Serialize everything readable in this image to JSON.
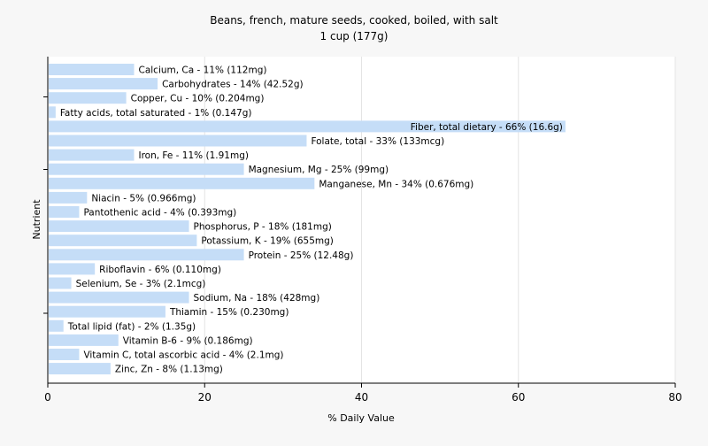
{
  "chart_data": {
    "type": "bar",
    "orientation": "horizontal",
    "title": "Beans, french, mature seeds, cooked, boiled, with salt",
    "subtitle": "1 cup (177g)",
    "xlabel": "% Daily Value",
    "ylabel": "Nutrient",
    "xlim": [
      0,
      80
    ],
    "xticks": [
      0,
      20,
      40,
      60,
      80
    ],
    "grid": true,
    "bar_color": "#c5ddf7",
    "categories": [
      "Calcium, Ca - 11% (112mg)",
      "Carbohydrates - 14% (42.52g)",
      "Copper, Cu - 10% (0.204mg)",
      "Fatty acids, total saturated - 1% (0.147g)",
      "Fiber, total dietary - 66% (16.6g)",
      "Folate, total - 33% (133mcg)",
      "Iron, Fe - 11% (1.91mg)",
      "Magnesium, Mg - 25% (99mg)",
      "Manganese, Mn - 34% (0.676mg)",
      "Niacin - 5% (0.966mg)",
      "Pantothenic acid - 4% (0.393mg)",
      "Phosphorus, P - 18% (181mg)",
      "Potassium, K - 19% (655mg)",
      "Protein - 25% (12.48g)",
      "Riboflavin - 6% (0.110mg)",
      "Selenium, Se - 3% (2.1mcg)",
      "Sodium, Na - 18% (428mg)",
      "Thiamin - 15% (0.230mg)",
      "Total lipid (fat) - 2% (1.35g)",
      "Vitamin B-6 - 9% (0.186mg)",
      "Vitamin C, total ascorbic acid - 4% (2.1mg)",
      "Zinc, Zn - 8% (1.13mg)"
    ],
    "values": [
      11,
      14,
      10,
      1,
      66,
      33,
      11,
      25,
      34,
      5,
      4,
      18,
      19,
      25,
      6,
      3,
      18,
      15,
      2,
      9,
      4,
      8
    ]
  }
}
